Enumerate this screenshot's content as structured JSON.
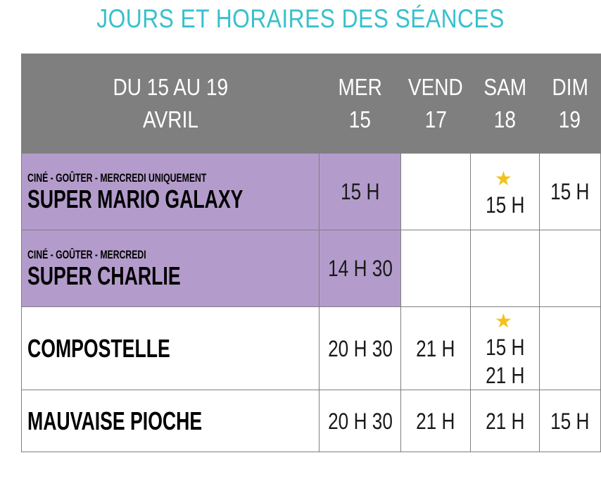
{
  "title": "JOURS ET HORAIRES DES SÉANCES",
  "colors": {
    "title": "#38c0cc",
    "header_bg": "#7f7f7f",
    "highlight_bg": "#b39ccb",
    "star": "#f2c21b"
  },
  "header": {
    "period_line1": "DU 15 AU 19",
    "period_line2": "AVRIL",
    "days": [
      {
        "name": "MER",
        "date": "15"
      },
      {
        "name": "VEND",
        "date": "17"
      },
      {
        "name": "SAM",
        "date": "18"
      },
      {
        "name": "DIM",
        "date": "19"
      }
    ]
  },
  "rows": [
    {
      "subtitle": "CINÉ - GOÛTER - MERCREDI UNIQUEMENT",
      "film": "SUPER MARIO GALAXY",
      "mer": "15 H",
      "vend": "",
      "sam": "15 H",
      "dim": "15 H"
    },
    {
      "subtitle": "CINÉ - GOÛTER - MERCREDI",
      "film": "SUPER CHARLIE",
      "mer": "14 H 30",
      "vend": "",
      "sam": "",
      "dim": ""
    },
    {
      "subtitle": "",
      "film": "COMPOSTELLE",
      "mer": "20 H 30",
      "vend": "21 H",
      "sam": "15 H",
      "sam2": "21 H",
      "dim": ""
    },
    {
      "subtitle": "",
      "film": "MAUVAISE PIOCHE",
      "mer": "20 H 30",
      "vend": "21 H",
      "sam": "21 H",
      "dim": "15 H"
    }
  ]
}
